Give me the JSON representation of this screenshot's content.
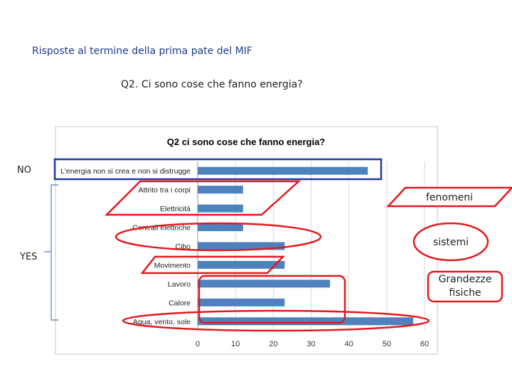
{
  "slide": {
    "title": "Risposte al termine della prima pate del MIF",
    "question": "Q2. Ci sono cose che fanno energia?"
  },
  "side_labels": {
    "no": "NO",
    "yes": "YES"
  },
  "callouts": {
    "fenomeni": "fenomeni",
    "sistemi": "sistemi",
    "grandezze": "Grandezze fisiche"
  },
  "colors": {
    "bar": "#4f81bd",
    "highlight_blue": "#1f3c99",
    "highlight_red": "#e3191f",
    "title_blue": "#1f3c88"
  },
  "chart_data": {
    "type": "bar",
    "orientation": "horizontal",
    "title": "Q2 ci sono cose che fanno energia?",
    "categories": [
      "L'energia non si crea e non si distrugge",
      "Attrito tra i corpi",
      "Elettricità",
      "Centrali elettriche",
      "Cibo",
      "Movimento",
      "Lavoro",
      "Calore",
      "Aqua, vento, sole"
    ],
    "values": [
      45,
      12,
      12,
      12,
      23,
      23,
      35,
      23,
      57
    ],
    "xlim": [
      0,
      60
    ],
    "xticks": [
      0,
      10,
      20,
      30,
      40,
      50,
      60
    ],
    "grid": true,
    "legend": "none"
  }
}
